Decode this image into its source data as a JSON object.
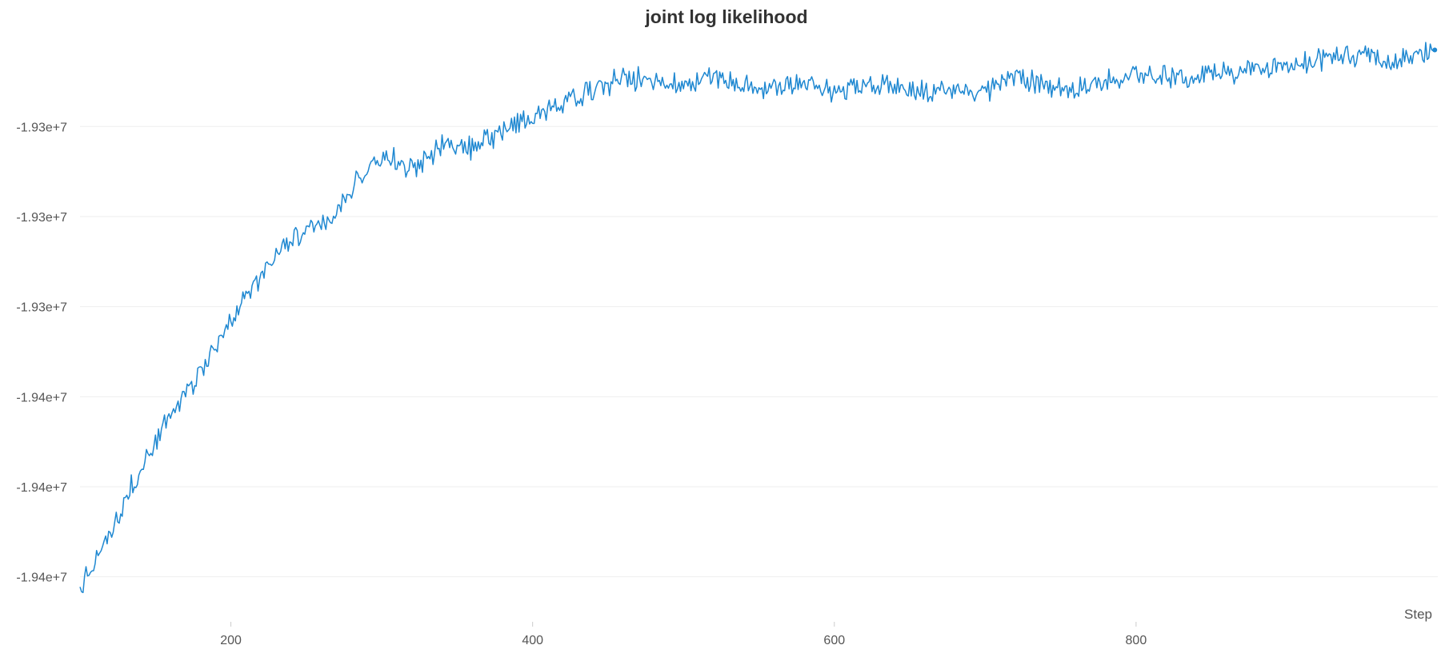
{
  "chart_data": {
    "type": "line",
    "title": "joint log likelihood",
    "xlabel": "Step",
    "ylabel": "",
    "xlim": [
      100,
      1000
    ],
    "ylim": [
      -19410000,
      -19279000
    ],
    "grid": true,
    "line_color": "#1f88d1",
    "x_ticks": [
      200,
      400,
      600,
      800
    ],
    "y_ticks": [
      {
        "value": -19300000,
        "label": "-1.93e+7"
      },
      {
        "value": -19320000,
        "label": "-1.93e+7"
      },
      {
        "value": -19340000,
        "label": "-1.93e+7"
      },
      {
        "value": -19360000,
        "label": "-1.94e+7"
      },
      {
        "value": -19380000,
        "label": "-1.94e+7"
      },
      {
        "value": -19400000,
        "label": "-1.94e+7"
      }
    ],
    "series": [
      {
        "x": [
          100,
          120,
          140,
          160,
          180,
          200,
          220,
          240,
          260,
          280,
          300,
          320,
          340,
          360,
          380,
          400,
          420,
          440,
          460,
          480,
          500,
          520,
          540,
          560,
          580,
          600,
          620,
          640,
          660,
          680,
          700,
          720,
          740,
          760,
          780,
          800,
          820,
          840,
          860,
          880,
          900,
          920,
          940,
          960,
          980,
          998
        ],
        "y": [
          -19402000,
          -19390000,
          -19376000,
          -19364000,
          -19355000,
          -19343000,
          -19333000,
          -19325000,
          -19322000,
          -19314000,
          -19306000,
          -19309000,
          -19304000,
          -19305000,
          -19301000,
          -19298000,
          -19295000,
          -19292000,
          -19289000,
          -19290000,
          -19291000,
          -19289000,
          -19291000,
          -19291000,
          -19290000,
          -19292000,
          -19291000,
          -19291000,
          -19292000,
          -19292000,
          -19292000,
          -19289000,
          -19291000,
          -19291000,
          -19290000,
          -19289000,
          -19289000,
          -19289000,
          -19288000,
          -19287000,
          -19287000,
          -19285000,
          -19284000,
          -19285000,
          -19285000,
          -19283000
        ]
      }
    ]
  }
}
